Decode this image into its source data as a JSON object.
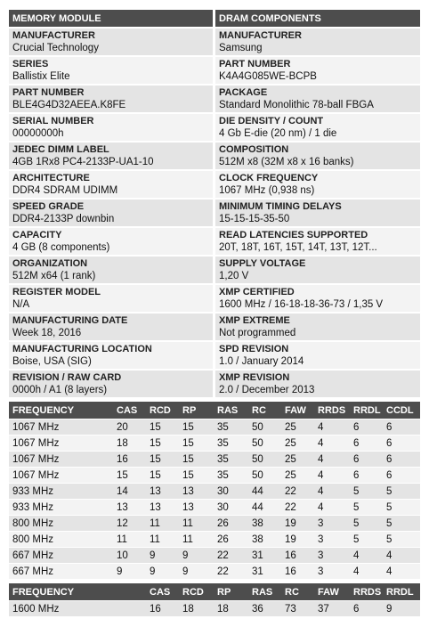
{
  "module": {
    "title": "MEMORY MODULE",
    "fields": [
      {
        "label": "MANUFACTURER",
        "value": "Crucial Technology"
      },
      {
        "label": "SERIES",
        "value": "Ballistix Elite"
      },
      {
        "label": "PART NUMBER",
        "value": "BLE4G4D32AEEA.K8FE"
      },
      {
        "label": "SERIAL NUMBER",
        "value": "00000000h"
      },
      {
        "label": "JEDEC DIMM LABEL",
        "value": "4GB 1Rx8 PC4-2133P-UA1-10"
      },
      {
        "label": "ARCHITECTURE",
        "value": "DDR4 SDRAM UDIMM"
      },
      {
        "label": "SPEED GRADE",
        "value": "DDR4-2133P downbin"
      },
      {
        "label": "CAPACITY",
        "value": "4 GB (8 components)"
      },
      {
        "label": "ORGANIZATION",
        "value": "512M x64 (1 rank)"
      },
      {
        "label": "REGISTER MODEL",
        "value": "N/A"
      },
      {
        "label": "MANUFACTURING DATE",
        "value": "Week 18, 2016"
      },
      {
        "label": "MANUFACTURING LOCATION",
        "value": "Boise, USA (SIG)"
      },
      {
        "label": "REVISION / RAW CARD",
        "value": "0000h / A1 (8 layers)"
      }
    ]
  },
  "dram": {
    "title": "DRAM COMPONENTS",
    "fields": [
      {
        "label": "MANUFACTURER",
        "value": "Samsung"
      },
      {
        "label": "PART NUMBER",
        "value": "K4A4G085WE-BCPB"
      },
      {
        "label": "PACKAGE",
        "value": "Standard Monolithic 78-ball FBGA"
      },
      {
        "label": "DIE DENSITY / COUNT",
        "value": "4 Gb E-die (20 nm) / 1 die"
      },
      {
        "label": "COMPOSITION",
        "value": "512M x8 (32M x8 x 16 banks)"
      },
      {
        "label": "CLOCK FREQUENCY",
        "value": "1067 MHz (0,938 ns)"
      },
      {
        "label": "MINIMUM TIMING DELAYS",
        "value": "15-15-15-35-50"
      },
      {
        "label": "READ LATENCIES SUPPORTED",
        "value": "20T, 18T, 16T, 15T, 14T, 13T, 12T..."
      },
      {
        "label": "SUPPLY VOLTAGE",
        "value": "1,20 V"
      },
      {
        "label": "XMP CERTIFIED",
        "value": "1600 MHz / 16-18-18-36-73 / 1,35 V"
      },
      {
        "label": "XMP EXTREME",
        "value": "Not programmed"
      },
      {
        "label": "SPD REVISION",
        "value": "1.0 / January 2014"
      },
      {
        "label": "XMP REVISION",
        "value": "2.0 / December 2013"
      }
    ]
  },
  "timings": {
    "header": [
      "FREQUENCY",
      "CAS",
      "RCD",
      "RP",
      "RAS",
      "RC",
      "FAW",
      "RRDS",
      "RRDL",
      "CCDL"
    ],
    "rows": [
      [
        "1067 MHz",
        "20",
        "15",
        "15",
        "35",
        "50",
        "25",
        "4",
        "6",
        "6"
      ],
      [
        "1067 MHz",
        "18",
        "15",
        "15",
        "35",
        "50",
        "25",
        "4",
        "6",
        "6"
      ],
      [
        "1067 MHz",
        "16",
        "15",
        "15",
        "35",
        "50",
        "25",
        "4",
        "6",
        "6"
      ],
      [
        "1067 MHz",
        "15",
        "15",
        "15",
        "35",
        "50",
        "25",
        "4",
        "6",
        "6"
      ],
      [
        "933 MHz",
        "14",
        "13",
        "13",
        "30",
        "44",
        "22",
        "4",
        "5",
        "5"
      ],
      [
        "933 MHz",
        "13",
        "13",
        "13",
        "30",
        "44",
        "22",
        "4",
        "5",
        "5"
      ],
      [
        "800 MHz",
        "12",
        "11",
        "11",
        "26",
        "38",
        "19",
        "3",
        "5",
        "5"
      ],
      [
        "800 MHz",
        "11",
        "11",
        "11",
        "26",
        "38",
        "19",
        "3",
        "5",
        "5"
      ],
      [
        "667 MHz",
        "10",
        "9",
        "9",
        "22",
        "31",
        "16",
        "3",
        "4",
        "4"
      ],
      [
        "667 MHz",
        "9",
        "9",
        "9",
        "22",
        "31",
        "16",
        "3",
        "4",
        "4"
      ]
    ]
  },
  "xmp": {
    "header": [
      "FREQUENCY",
      "CAS",
      "RCD",
      "RP",
      "RAS",
      "RC",
      "FAW",
      "RRDS",
      "RRDL"
    ],
    "rows": [
      [
        "1600 MHz",
        "16",
        "18",
        "18",
        "36",
        "73",
        "37",
        "6",
        "9"
      ]
    ]
  }
}
